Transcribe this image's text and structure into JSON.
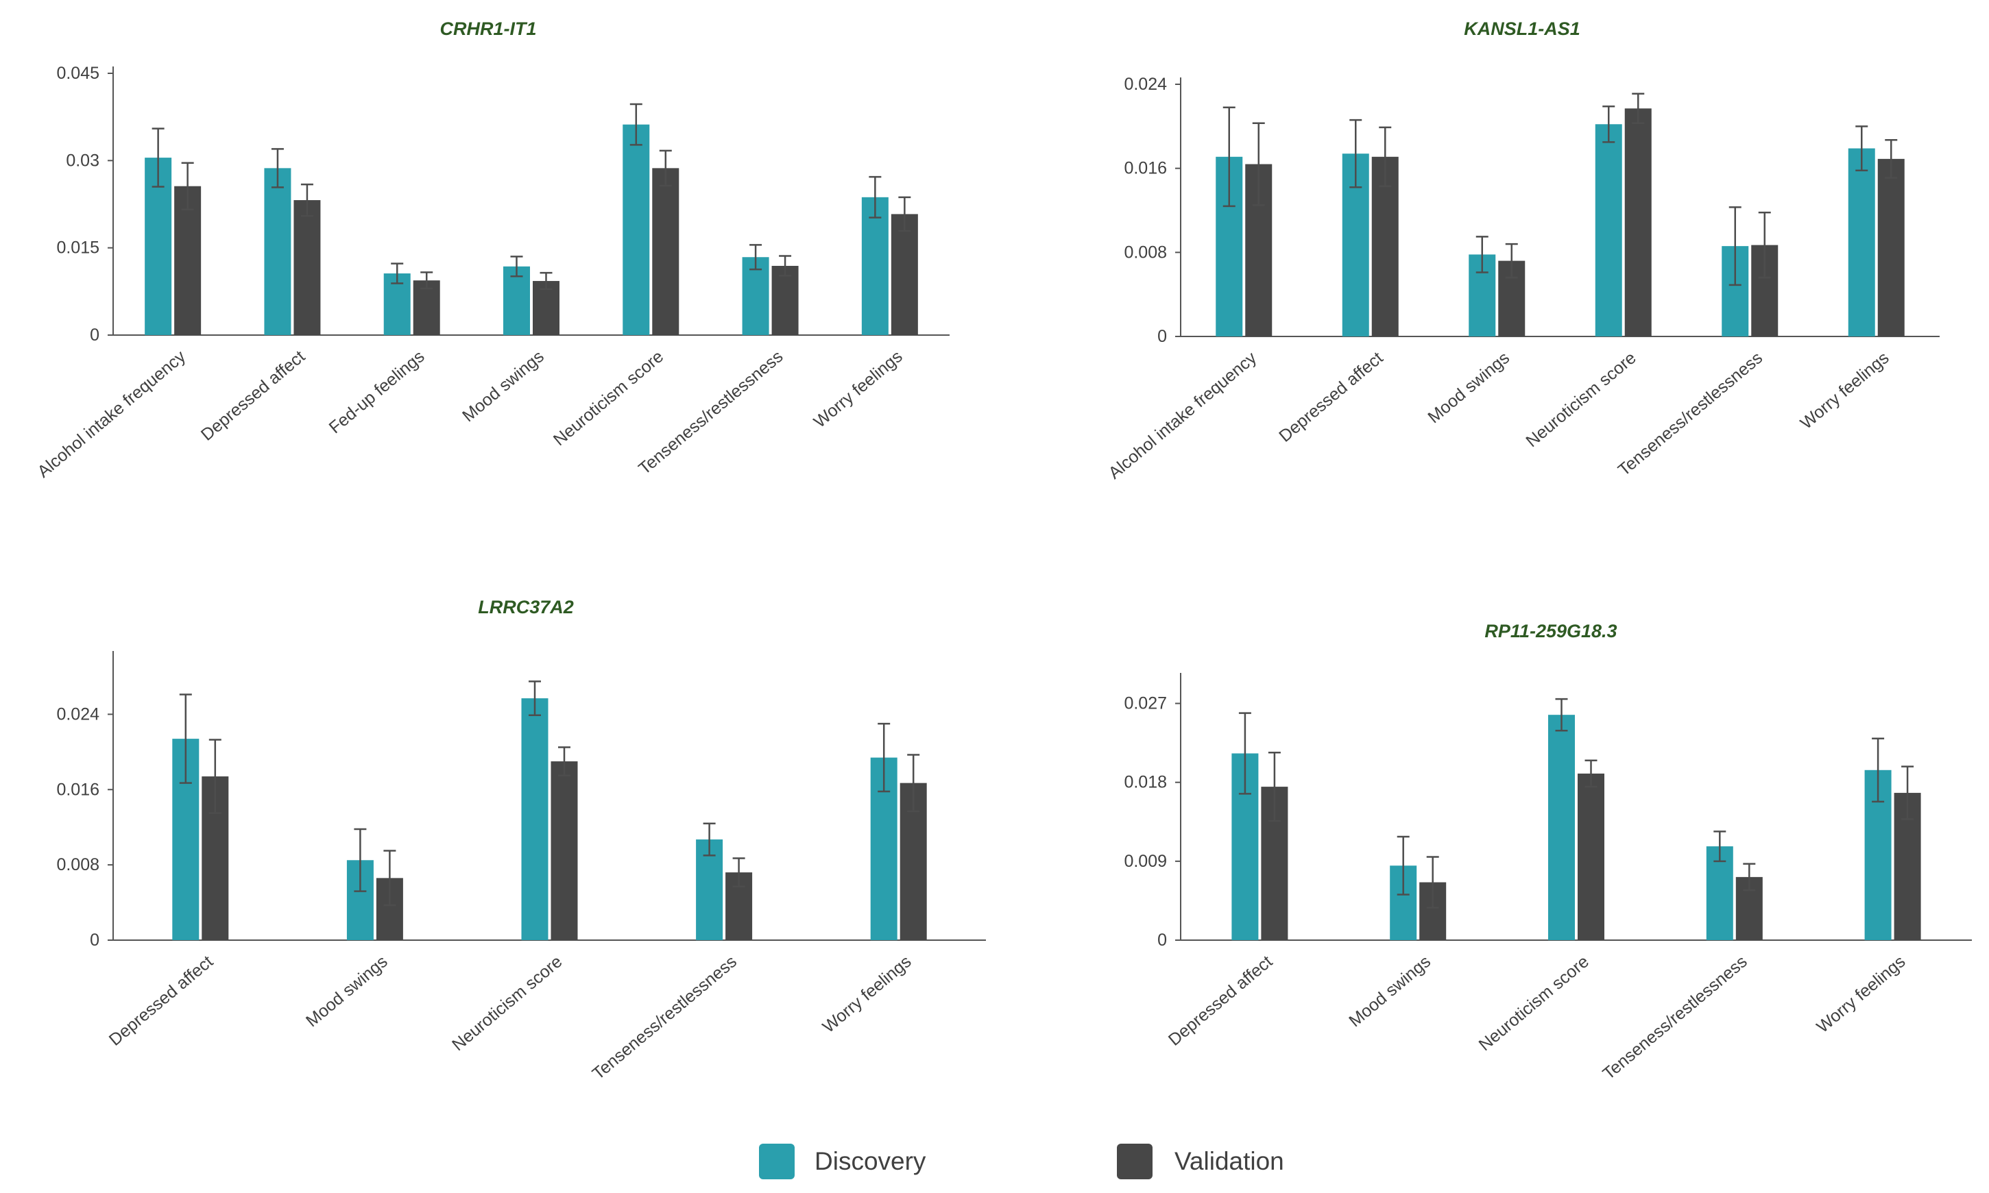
{
  "colors": {
    "discovery": "#2a9fad",
    "validation": "#474747",
    "title": "#2e5a23",
    "axis": "#555555",
    "error_bar": "#4d4d4d"
  },
  "legend": [
    {
      "name": "Discovery",
      "color": "#2a9fad"
    },
    {
      "name": "Validation",
      "color": "#474747"
    }
  ],
  "chart_data": [
    {
      "type": "bar",
      "title": "CRHR1-IT1",
      "categories": [
        "Alcohol intake frequency",
        "Depressed affect",
        "Fed-up feelings",
        "Mood swings",
        "Neuroticism score",
        "Tenseness/restlessness",
        "Worry feelings"
      ],
      "ylim": [
        0,
        0.045
      ],
      "yticks": [
        "0",
        "0.015",
        "0.03",
        "0.045"
      ],
      "series": [
        {
          "name": "Discovery",
          "values": [
            0.0305,
            0.0287,
            0.0106,
            0.0118,
            0.0362,
            0.0134,
            0.0237
          ],
          "errors": [
            0.005,
            0.0033,
            0.0017,
            0.0017,
            0.0035,
            0.0021,
            0.0035
          ]
        },
        {
          "name": "Validation",
          "values": [
            0.0256,
            0.0232,
            0.0094,
            0.0093,
            0.0287,
            0.0119,
            0.0208
          ],
          "errors": [
            0.004,
            0.0027,
            0.0014,
            0.0014,
            0.003,
            0.0017,
            0.0029
          ]
        }
      ]
    },
    {
      "type": "bar",
      "title": "KANSL1-AS1",
      "categories": [
        "Alcohol intake frequency",
        "Depressed affect",
        "Mood swings",
        "Neuroticism score",
        "Tenseness/restlessness",
        "Worry feelings"
      ],
      "ylim": [
        0,
        0.024
      ],
      "yticks": [
        "0",
        "0.008",
        "0.016",
        "0.024"
      ],
      "series": [
        {
          "name": "Discovery",
          "values": [
            0.0171,
            0.0174,
            0.0078,
            0.0202,
            0.0086,
            0.0179
          ],
          "errors": [
            0.0047,
            0.0032,
            0.0017,
            0.0017,
            0.0037,
            0.0021
          ]
        },
        {
          "name": "Validation",
          "values": [
            0.0164,
            0.0171,
            0.0072,
            0.0217,
            0.0087,
            0.0169
          ],
          "errors": [
            0.0039,
            0.0028,
            0.0016,
            0.0014,
            0.0031,
            0.0018
          ]
        }
      ]
    },
    {
      "type": "bar",
      "title": "LRRC37A2",
      "categories": [
        "Depressed affect",
        "Mood swings",
        "Neuroticism score",
        "Tenseness/restlessness",
        "Worry feelings"
      ],
      "ylim": [
        0,
        0.03
      ],
      "yticks": [
        "0",
        "0.008",
        "0.016",
        "0.024"
      ],
      "series": [
        {
          "name": "Discovery",
          "values": [
            0.0214,
            0.0085,
            0.0257,
            0.0107,
            0.0194
          ],
          "errors": [
            0.0047,
            0.0033,
            0.0018,
            0.0017,
            0.0036
          ]
        },
        {
          "name": "Validation",
          "values": [
            0.0174,
            0.0066,
            0.019,
            0.0072,
            0.0167
          ],
          "errors": [
            0.0039,
            0.0029,
            0.0015,
            0.0015,
            0.003
          ]
        }
      ]
    },
    {
      "type": "bar",
      "title": "RP11-259G18.3",
      "categories": [
        "Depressed affect",
        "Mood swings",
        "Neuroticism score",
        "Tenseness/restlessness",
        "Worry feelings"
      ],
      "ylim": [
        0,
        0.0297
      ],
      "yticks": [
        "0",
        "0.009",
        "0.018",
        "0.027"
      ],
      "series": [
        {
          "name": "Discovery",
          "values": [
            0.0213,
            0.0085,
            0.0257,
            0.0107,
            0.0194
          ],
          "errors": [
            0.0046,
            0.0033,
            0.0018,
            0.0017,
            0.0036
          ]
        },
        {
          "name": "Validation",
          "values": [
            0.0175,
            0.0066,
            0.019,
            0.0072,
            0.0168
          ],
          "errors": [
            0.0039,
            0.0029,
            0.0015,
            0.0015,
            0.003
          ]
        }
      ]
    }
  ]
}
